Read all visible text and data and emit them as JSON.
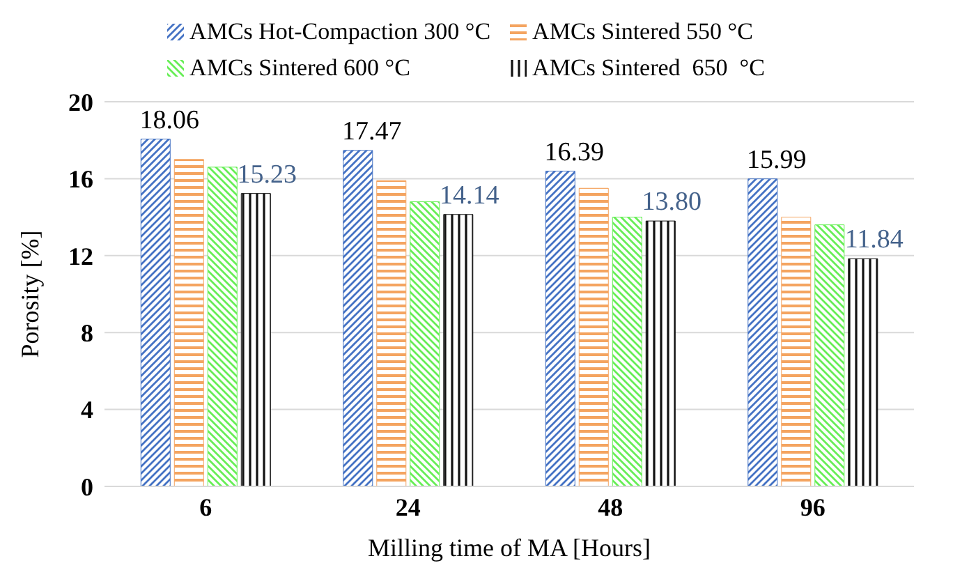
{
  "chart_data": {
    "type": "bar",
    "xlabel": "Milling time of MA [Hours]",
    "ylabel": "Porosity [%]",
    "categories": [
      "6",
      "24",
      "48",
      "96"
    ],
    "series": [
      {
        "name": "AMCs Hot-Compaction 300 °C",
        "color": "#4472c4",
        "values": [
          18.06,
          17.47,
          16.39,
          15.99
        ],
        "value_labels": [
          "18.06",
          "17.47",
          "16.39",
          "15.99"
        ]
      },
      {
        "name": "AMCs Sintered 550 °C",
        "color": "#f4a460",
        "values": [
          17.0,
          15.9,
          15.5,
          14.0
        ]
      },
      {
        "name": "AMCs Sintered 600 °C",
        "color": "#66ee55",
        "values": [
          16.6,
          14.8,
          14.0,
          13.6
        ]
      },
      {
        "name": "AMCs Sintered  650  °C",
        "color": "#111111",
        "values": [
          15.23,
          14.14,
          13.8,
          11.84
        ],
        "value_labels": [
          "15.23",
          "14.14",
          "13.80",
          "11.84"
        ]
      }
    ],
    "ylim": [
      0,
      20
    ],
    "yticks": [
      0,
      4,
      8,
      12,
      16,
      20
    ],
    "grid": "y",
    "legend": "top"
  }
}
